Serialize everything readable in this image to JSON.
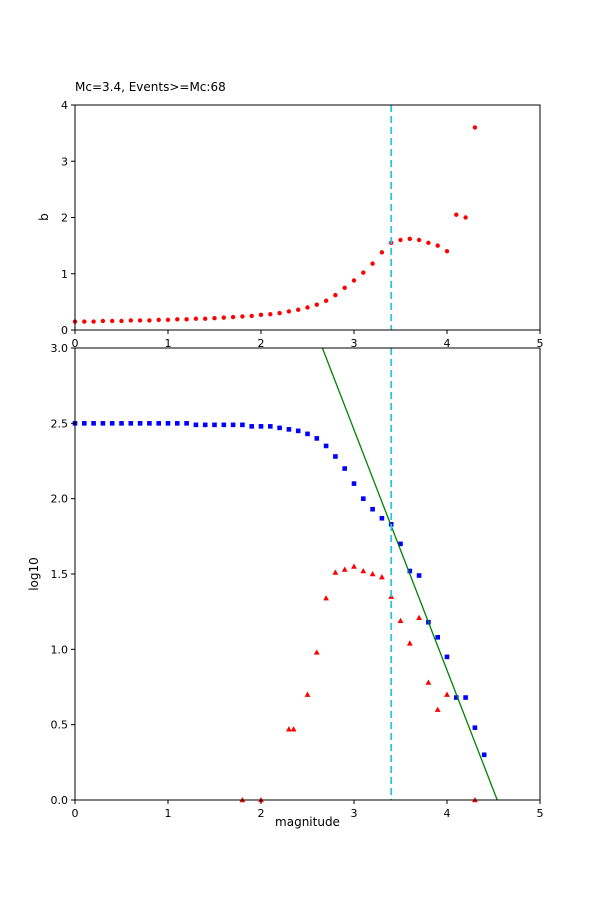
{
  "figure": {
    "background": "#ffffff",
    "frame_color": "#000000"
  },
  "labels": {
    "title": "Mc=3.4, Events>=Mc:68",
    "xlabel": "magnitude",
    "ylabel_top": "b",
    "ylabel_bottom": "log10"
  },
  "colors": {
    "b_value_dots": "#ff0000",
    "cumulative_squares": "#0000ff",
    "incremental_triangles": "#ff0000",
    "fit_line": "#008000",
    "mc_line": "#2bc4de"
  },
  "chart_data": [
    {
      "type": "scatter",
      "name": "b-value-vs-magnitude",
      "title": "Mc=3.4, Events>=Mc:68",
      "xlabel": "",
      "ylabel": "b",
      "xlim": [
        0,
        5
      ],
      "ylim": [
        0,
        4
      ],
      "xticks": [
        0,
        1,
        2,
        3,
        4,
        5
      ],
      "xtick_labels": [
        "0",
        "1",
        "2",
        "3",
        "4",
        "5"
      ],
      "yticks": [
        0,
        1,
        2,
        3,
        4
      ],
      "ytick_labels": [
        "0",
        "1",
        "2",
        "3",
        "4"
      ],
      "grid": false,
      "vline": {
        "x": 3.4,
        "color": "#2bc4de",
        "style": "dashed"
      },
      "series": [
        {
          "name": "b-values",
          "marker": "circle",
          "color": "#ff0000",
          "x": [
            0.0,
            0.1,
            0.2,
            0.3,
            0.4,
            0.5,
            0.6,
            0.7,
            0.8,
            0.9,
            1.0,
            1.1,
            1.2,
            1.3,
            1.4,
            1.5,
            1.6,
            1.7,
            1.8,
            1.9,
            2.0,
            2.1,
            2.2,
            2.3,
            2.4,
            2.5,
            2.6,
            2.7,
            2.8,
            2.9,
            3.0,
            3.1,
            3.2,
            3.3,
            3.4,
            3.5,
            3.6,
            3.7,
            3.8,
            3.9,
            4.0,
            4.1,
            4.2,
            4.3
          ],
          "y": [
            0.15,
            0.15,
            0.15,
            0.16,
            0.16,
            0.16,
            0.17,
            0.17,
            0.17,
            0.18,
            0.18,
            0.19,
            0.19,
            0.2,
            0.2,
            0.21,
            0.22,
            0.23,
            0.24,
            0.25,
            0.27,
            0.28,
            0.3,
            0.33,
            0.36,
            0.4,
            0.45,
            0.52,
            0.62,
            0.75,
            0.88,
            1.02,
            1.18,
            1.38,
            1.55,
            1.6,
            1.62,
            1.6,
            1.55,
            1.5,
            1.4,
            2.05,
            2.0,
            3.6
          ]
        }
      ]
    },
    {
      "type": "scatter",
      "name": "frequency-magnitude-distribution",
      "title": "",
      "xlabel": "magnitude",
      "ylabel": "log10",
      "xlim": [
        0,
        5
      ],
      "ylim": [
        0,
        3
      ],
      "xticks": [
        0,
        1,
        2,
        3,
        4,
        5
      ],
      "xtick_labels": [
        "0",
        "1",
        "2",
        "3",
        "4",
        "5"
      ],
      "yticks": [
        0,
        0.5,
        1,
        1.5,
        2,
        2.5,
        3
      ],
      "ytick_labels": [
        "0.0",
        "0.5",
        "1.0",
        "1.5",
        "2.0",
        "2.5",
        "3.0"
      ],
      "grid": false,
      "vline": {
        "x": 3.4,
        "color": "#2bc4de",
        "style": "dashed"
      },
      "fit_line": {
        "color": "#008000",
        "x": [
          2.66,
          4.54
        ],
        "y": [
          3.0,
          0.0
        ]
      },
      "series": [
        {
          "name": "cumulative-count",
          "marker": "square",
          "color": "#0000ff",
          "x": [
            0.0,
            0.1,
            0.2,
            0.3,
            0.4,
            0.5,
            0.6,
            0.7,
            0.8,
            0.9,
            1.0,
            1.1,
            1.2,
            1.3,
            1.4,
            1.5,
            1.6,
            1.7,
            1.8,
            1.9,
            2.0,
            2.1,
            2.2,
            2.3,
            2.4,
            2.5,
            2.6,
            2.7,
            2.8,
            2.9,
            3.0,
            3.1,
            3.2,
            3.3,
            3.4,
            3.5,
            3.6,
            3.7,
            3.8,
            3.9,
            4.0,
            4.1,
            4.2,
            4.3,
            4.4
          ],
          "y": [
            2.5,
            2.5,
            2.5,
            2.5,
            2.5,
            2.5,
            2.5,
            2.5,
            2.5,
            2.5,
            2.5,
            2.5,
            2.5,
            2.49,
            2.49,
            2.49,
            2.49,
            2.49,
            2.49,
            2.48,
            2.48,
            2.48,
            2.47,
            2.46,
            2.45,
            2.43,
            2.4,
            2.35,
            2.28,
            2.2,
            2.1,
            2.0,
            1.93,
            1.87,
            1.83,
            1.7,
            1.52,
            1.49,
            1.18,
            1.08,
            0.95,
            0.68,
            0.68,
            0.48,
            0.3
          ]
        },
        {
          "name": "incremental-count",
          "marker": "triangle",
          "color": "#ff0000",
          "x": [
            1.8,
            2.0,
            2.3,
            2.35,
            2.5,
            2.6,
            2.7,
            2.8,
            2.9,
            3.0,
            3.1,
            3.2,
            3.3,
            3.4,
            3.5,
            3.6,
            3.7,
            3.8,
            3.9,
            4.0,
            4.3
          ],
          "y": [
            0.0,
            0.0,
            0.47,
            0.47,
            0.7,
            0.98,
            1.34,
            1.51,
            1.53,
            1.55,
            1.52,
            1.5,
            1.48,
            1.35,
            1.19,
            1.04,
            1.21,
            0.78,
            0.6,
            0.7,
            0.0
          ]
        }
      ]
    }
  ]
}
